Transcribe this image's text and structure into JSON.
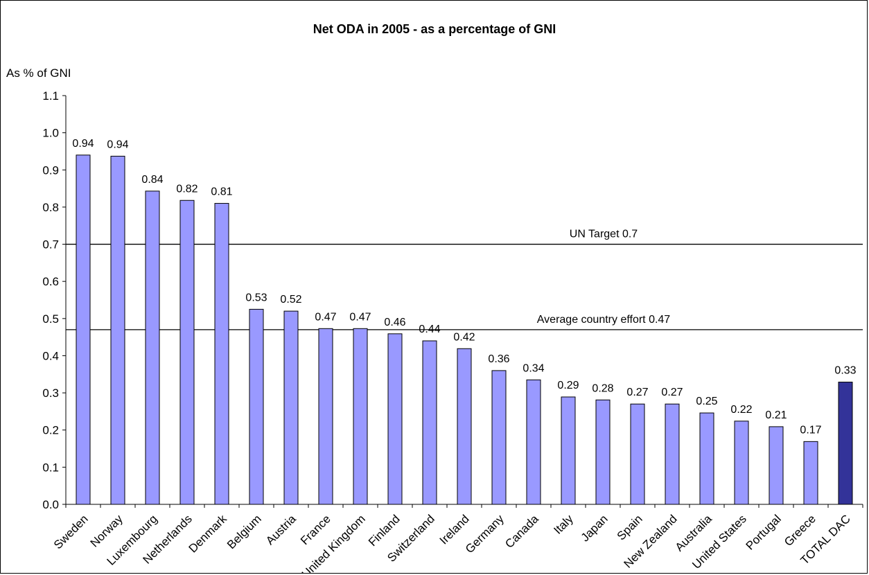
{
  "chart_data": {
    "type": "bar",
    "title": "Net ODA in 2005 - as a percentage of GNI",
    "ylabel": "As % of GNI",
    "xlabel": "",
    "ylim": [
      0,
      1.1
    ],
    "yticks": [
      "0.0",
      "0.1",
      "0.2",
      "0.3",
      "0.4",
      "0.5",
      "0.6",
      "0.7",
      "0.8",
      "0.9",
      "1.0",
      "1.1"
    ],
    "grid": false,
    "categories": [
      "Sweden",
      "Norway",
      "Luxembourg",
      "Netherlands",
      "Denmark",
      "Belgium",
      "Austria",
      "France",
      "United Kingdom",
      "Finland",
      "Switzerland",
      "Ireland",
      "Germany",
      "Canada",
      "Italy",
      "Japan",
      "Spain",
      "New Zealand",
      "Australia",
      "United States",
      "Portugal",
      "Greece",
      "TOTAL DAC"
    ],
    "values": [
      0.94,
      0.937,
      0.843,
      0.818,
      0.81,
      0.525,
      0.52,
      0.473,
      0.473,
      0.459,
      0.44,
      0.419,
      0.36,
      0.335,
      0.289,
      0.281,
      0.27,
      0.27,
      0.246,
      0.224,
      0.209,
      0.169,
      0.329
    ],
    "labels": [
      "0.94",
      "0.94",
      "0.84",
      "0.82",
      "0.81",
      "0.53",
      "0.52",
      "0.47",
      "0.47",
      "0.46",
      "0.44",
      "0.42",
      "0.36",
      "0.34",
      "0.29",
      "0.28",
      "0.27",
      "0.27",
      "0.25",
      "0.22",
      "0.21",
      "0.17",
      "0.33"
    ],
    "colors": {
      "bar": "#9999ff",
      "highlight": "#333399",
      "outline": "#000000"
    },
    "reference_lines": [
      {
        "value": 0.7,
        "label": "UN Target 0.7"
      },
      {
        "value": 0.47,
        "label": "Average country effort 0.47"
      }
    ]
  }
}
